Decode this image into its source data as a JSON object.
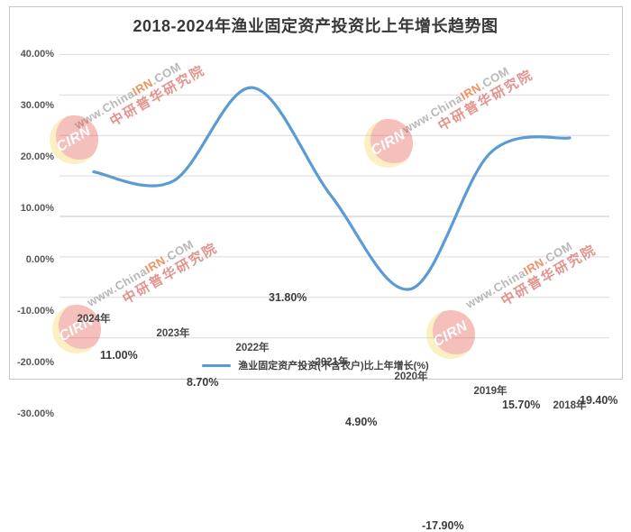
{
  "title": "2018-2024年渔业固定资产投资比上年增长趋势图",
  "chart_data": {
    "type": "line",
    "categories": [
      "2024年",
      "2023年",
      "2022年",
      "2021年",
      "2020年",
      "2019年",
      "2018年"
    ],
    "values": [
      11.0,
      8.7,
      31.8,
      4.9,
      -17.9,
      15.7,
      19.4
    ],
    "data_labels": [
      "11.00%",
      "8.70%",
      "31.80%",
      "4.90%",
      "-17.90%",
      "15.70%",
      "19.40%"
    ],
    "series_name": "渔业固定资产投资(不含农户)比上年增长(%)",
    "title": "2018-2024年渔业固定资产投资比上年增长趋势图",
    "xlabel": "",
    "ylabel": "",
    "y_ticks": [
      "40.00%",
      "30.00%",
      "20.00%",
      "10.00%",
      "0.00%",
      "-10.00%",
      "-20.00%",
      "-30.00%"
    ],
    "y_tick_values": [
      40,
      30,
      20,
      10,
      0,
      -10,
      -20,
      -30
    ],
    "ylim": [
      -30,
      40
    ],
    "grid": true,
    "smooth": true,
    "legend_position": "bottom",
    "line_color": "#5B9BD5",
    "grid_color": "#d9d9d9",
    "zero_line_color": "#c6c6c6"
  },
  "legend": {
    "label": "渔业固定资产投资(不含农户)比上年增长(%)"
  },
  "watermark": {
    "site_prefix": "www.China",
    "site_highlight": "IRN",
    "site_suffix": ".COM",
    "org": "中研普华研究院",
    "logo_text": "CIRN",
    "colors": {
      "logo_red": "#e23a30",
      "logo_yellow": "#f7cf4a"
    }
  }
}
